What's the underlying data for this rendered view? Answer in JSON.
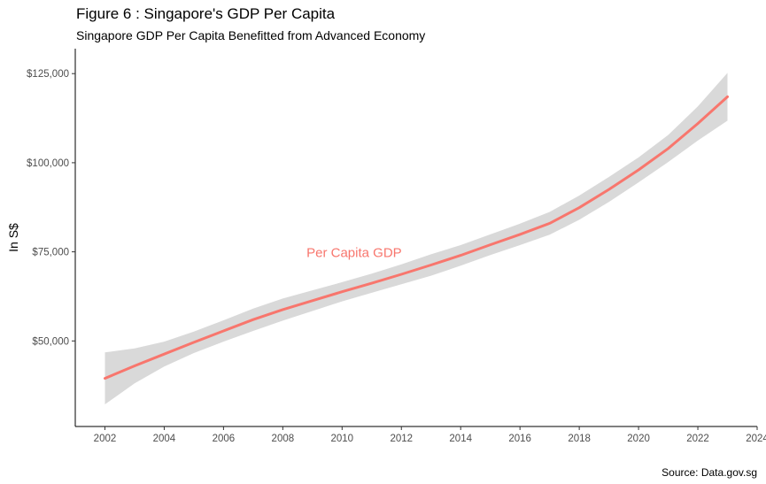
{
  "chart_data": {
    "type": "line",
    "title": "Figure 6 : Singapore's GDP Per Capita",
    "subtitle": "Singapore GDP Per Capita Benefitted from Advanced Economy",
    "caption": "Source: Data.gov.sg",
    "xlabel": "",
    "ylabel": "In S$",
    "x_ticks": [
      2002,
      2004,
      2006,
      2008,
      2010,
      2012,
      2014,
      2016,
      2018,
      2020,
      2022,
      2024
    ],
    "y_ticks": [
      50000,
      75000,
      100000,
      125000
    ],
    "y_tick_labels": [
      "$50,000",
      "$75,000",
      "$100,000",
      "$125,000"
    ],
    "xlim": [
      2001,
      2024
    ],
    "ylim": [
      26000,
      132000
    ],
    "grid": false,
    "series": [
      {
        "name": "Per Capita GDP",
        "color": "#F8766D",
        "band_color": "#d9d9d9",
        "x": [
          2002,
          2003,
          2004,
          2005,
          2006,
          2007,
          2008,
          2009,
          2010,
          2011,
          2012,
          2013,
          2014,
          2015,
          2016,
          2017,
          2018,
          2019,
          2020,
          2021,
          2022,
          2023
        ],
        "y": [
          39500,
          43000,
          46300,
          49600,
          52800,
          56000,
          58800,
          61300,
          63800,
          66200,
          68700,
          71300,
          74000,
          77000,
          79900,
          83000,
          87400,
          92500,
          98000,
          104000,
          111000,
          118500
        ],
        "lower": [
          32200,
          38100,
          42800,
          46600,
          49800,
          52800,
          55700,
          58400,
          61100,
          63500,
          65900,
          68300,
          71100,
          74100,
          76900,
          79800,
          84000,
          89000,
          94500,
          100200,
          106200,
          111800
        ],
        "upper": [
          46800,
          47900,
          49800,
          52600,
          55800,
          59100,
          61900,
          64200,
          66500,
          68900,
          71500,
          74300,
          76900,
          79900,
          82900,
          86200,
          90800,
          96000,
          101500,
          107800,
          115800,
          125200
        ]
      }
    ]
  }
}
